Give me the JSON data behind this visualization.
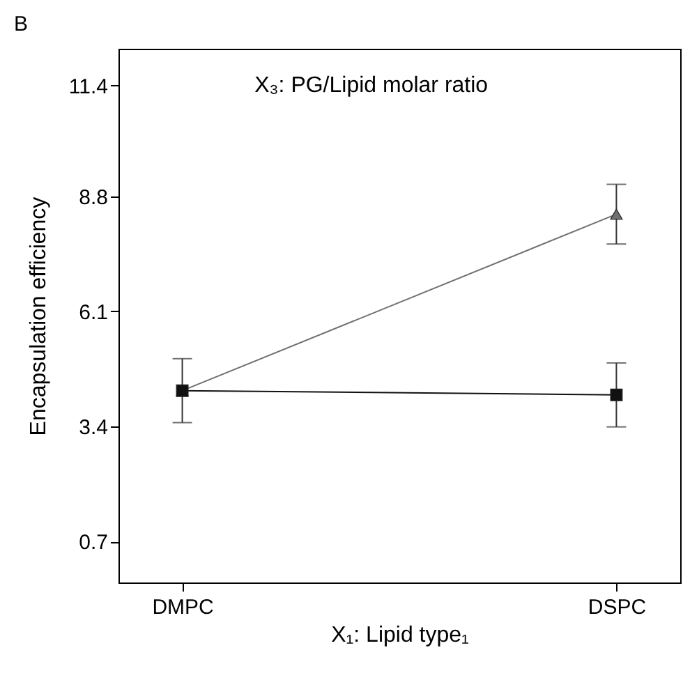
{
  "chart_data": {
    "type": "line",
    "title": "B",
    "xlabel": "X₁: Lipid type₁",
    "ylabel": "Encapsulation efficiency",
    "annotations": [
      "X₃: PG/Lipid molar ratio"
    ],
    "categories": [
      "DMPC",
      "DSPC"
    ],
    "series": [
      {
        "color": "#707070",
        "marker": "triangle",
        "values": [
          4.24,
          8.38
        ],
        "errors": [
          null,
          0.7
        ]
      },
      {
        "color": "#111111",
        "marker": "square",
        "values": [
          4.24,
          4.14
        ],
        "errors": [
          0.75,
          0.75
        ]
      }
    ],
    "ylim": [
      -0.26,
      12.26
    ],
    "yticks": [
      0.7,
      3.4,
      6.1,
      8.8,
      11.4
    ],
    "grid": false
  }
}
